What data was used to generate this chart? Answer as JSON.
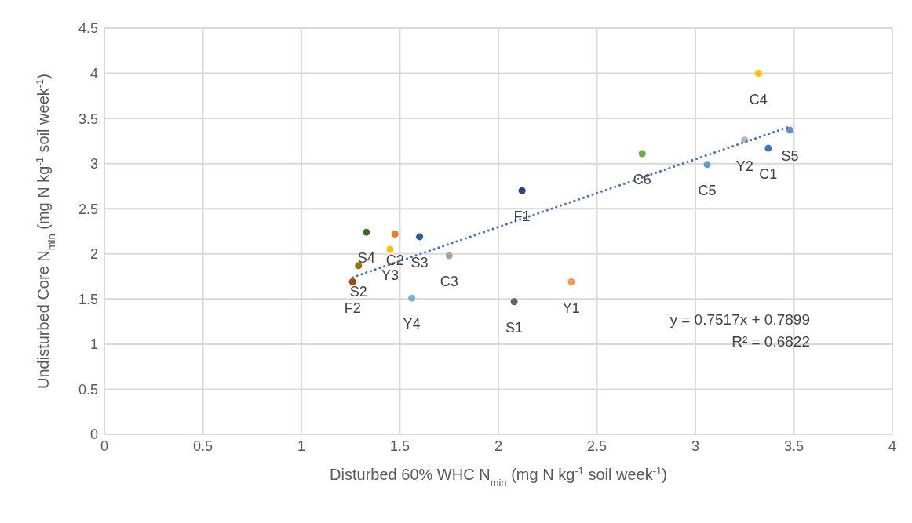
{
  "chart_data": {
    "type": "scatter",
    "xlabel": "Disturbed 60% WHC N$_{min}$ (mg N kg$^{-1}$ soil week$^{-1}$)",
    "ylabel": "Undisturbed Core N$_{min}$ (mg N kg$^{-1}$ soil week$^{-1}$)",
    "xlim": [
      0,
      4
    ],
    "xticks": [
      0,
      0.5,
      1,
      1.5,
      2,
      2.5,
      3,
      3.5,
      4
    ],
    "ylim": [
      0,
      4.5
    ],
    "yticks": [
      0,
      0.5,
      1,
      1.5,
      2,
      2.5,
      3,
      3.5,
      4,
      4.5
    ],
    "grid": true,
    "marker": "circle",
    "series": [
      {
        "name": "C1",
        "color": "#4472c4",
        "x": [
          3.37
        ],
        "values": [
          3.17
        ]
      },
      {
        "name": "C2",
        "color": "#ed7d31",
        "x": [
          1.475
        ],
        "values": [
          2.22
        ]
      },
      {
        "name": "C3",
        "color": "#a5a5a5",
        "x": [
          1.75
        ],
        "values": [
          1.98
        ]
      },
      {
        "name": "C4",
        "color": "#ffc000",
        "x": [
          3.32
        ],
        "values": [
          4.0
        ]
      },
      {
        "name": "C5",
        "color": "#5b9bd5",
        "x": [
          3.06
        ],
        "values": [
          2.99
        ]
      },
      {
        "name": "C6",
        "color": "#70ad47",
        "x": [
          2.73
        ],
        "values": [
          3.11
        ]
      },
      {
        "name": "F1",
        "color": "#264478",
        "x": [
          2.12
        ],
        "values": [
          2.7
        ]
      },
      {
        "name": "F2",
        "color": "#9e480e",
        "x": [
          1.26
        ],
        "values": [
          1.69
        ]
      },
      {
        "name": "S1",
        "color": "#636363",
        "x": [
          2.08
        ],
        "values": [
          1.47
        ]
      },
      {
        "name": "S2",
        "color": "#997300",
        "x": [
          1.29
        ],
        "values": [
          1.87
        ]
      },
      {
        "name": "S3",
        "color": "#255e91",
        "x": [
          1.6
        ],
        "values": [
          2.19
        ]
      },
      {
        "name": "S4",
        "color": "#43682b",
        "x": [
          1.33
        ],
        "values": [
          2.24
        ]
      },
      {
        "name": "S5",
        "color": "#698ed0",
        "x": [
          3.48
        ],
        "values": [
          3.37
        ]
      },
      {
        "name": "Y1",
        "color": "#f1975a",
        "x": [
          2.37
        ],
        "values": [
          1.69
        ]
      },
      {
        "name": "Y2",
        "color": "#b7b7b7",
        "x": [
          3.25
        ],
        "values": [
          3.26
        ]
      },
      {
        "name": "Y3",
        "color": "#ffc000",
        "x": [
          1.45
        ],
        "values": [
          2.05
        ]
      },
      {
        "name": "Y4",
        "color": "#7cafdd",
        "x": [
          1.56
        ],
        "values": [
          1.51
        ]
      },
      {
        "type": "line",
        "color": "#4472c4",
        "line_style": "dotted",
        "marker": "none",
        "x": [
          1.26,
          3.48
        ],
        "values": [
          1.74,
          3.41
        ]
      }
    ],
    "annotations": [
      "y = 0.7517x + 0.7899",
      "R² = 0.6822"
    ]
  }
}
